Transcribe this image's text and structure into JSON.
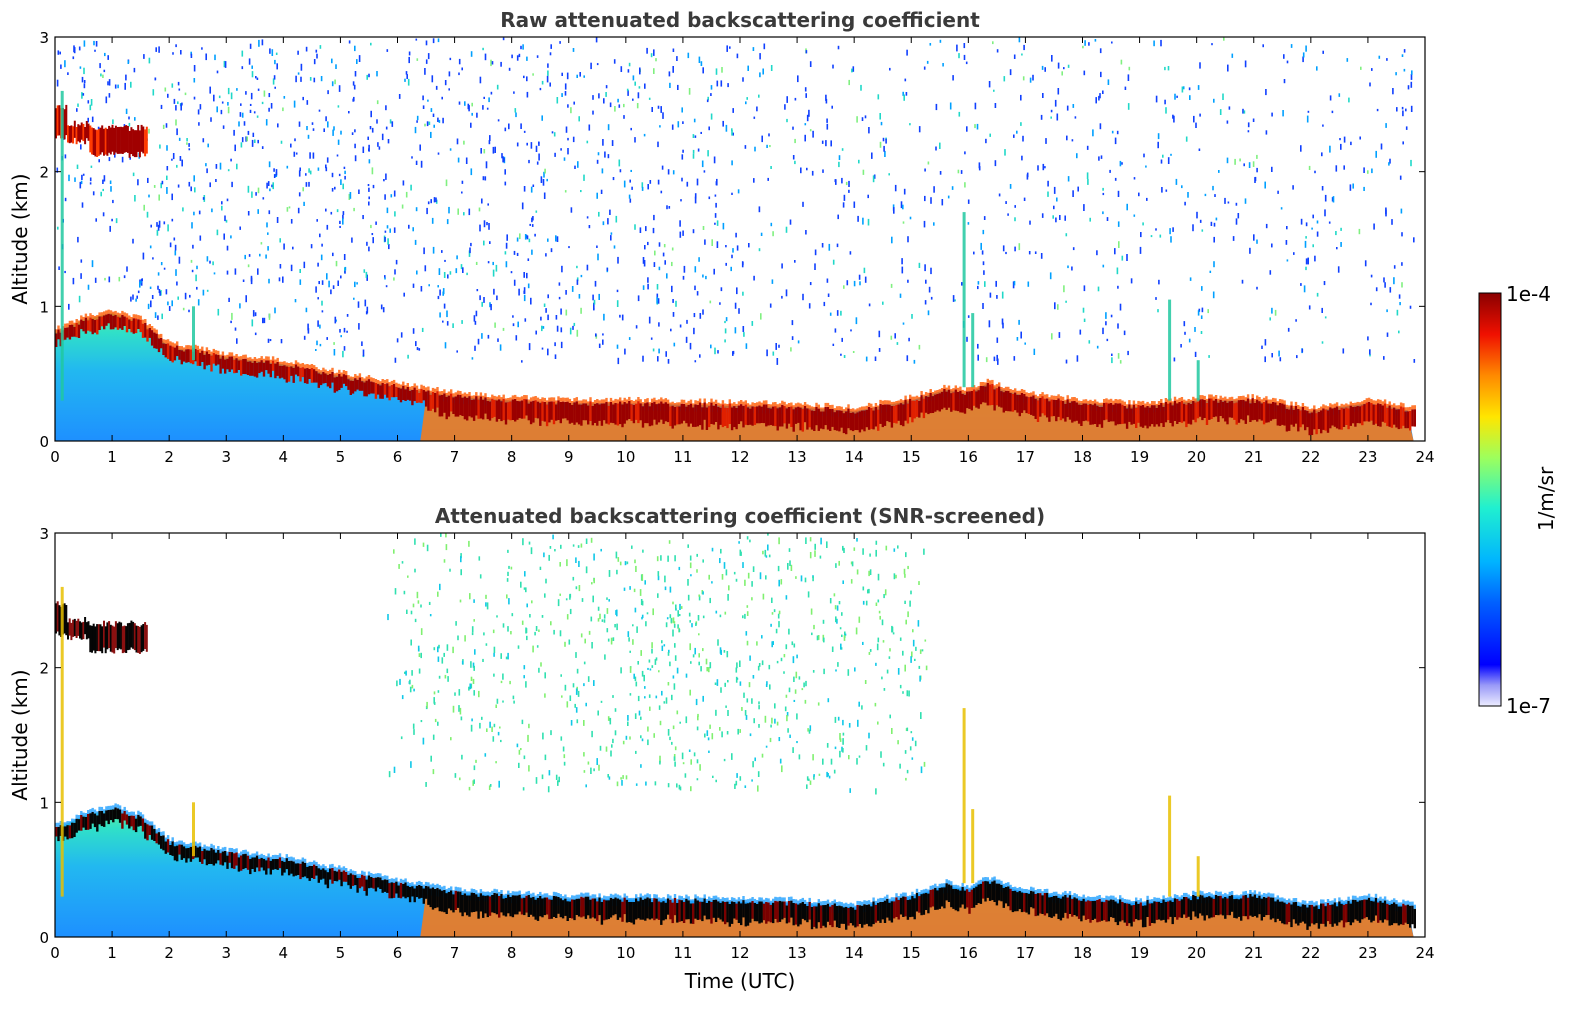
{
  "chart_data": [
    {
      "type": "heatmap",
      "title": "Raw attenuated backscattering coefficient",
      "xlabel": "",
      "ylabel": "Altitude (km)",
      "xlim": [
        0,
        24
      ],
      "ylim": [
        0,
        3
      ],
      "xticks": [
        "0",
        "1",
        "2",
        "3",
        "4",
        "5",
        "6",
        "7",
        "8",
        "9",
        "10",
        "11",
        "12",
        "13",
        "14",
        "15",
        "16",
        "17",
        "18",
        "19",
        "20",
        "21",
        "22",
        "23",
        "24"
      ],
      "yticks": [
        "0",
        "1",
        "2",
        "3"
      ],
      "boundary_layer_top_km": [
        [
          0,
          0.8
        ],
        [
          0.5,
          0.9
        ],
        [
          1.0,
          0.95
        ],
        [
          1.5,
          0.88
        ],
        [
          2.0,
          0.7
        ],
        [
          3.0,
          0.62
        ],
        [
          4.0,
          0.57
        ],
        [
          5.0,
          0.48
        ],
        [
          6.0,
          0.4
        ],
        [
          7.0,
          0.33
        ],
        [
          8.0,
          0.3
        ],
        [
          9.0,
          0.28
        ],
        [
          10.0,
          0.28
        ],
        [
          11.0,
          0.27
        ],
        [
          12.0,
          0.26
        ],
        [
          13.0,
          0.25
        ],
        [
          14.0,
          0.22
        ],
        [
          15.0,
          0.3
        ],
        [
          15.6,
          0.38
        ],
        [
          16.0,
          0.35
        ],
        [
          16.3,
          0.42
        ],
        [
          17.0,
          0.33
        ],
        [
          18.0,
          0.28
        ],
        [
          19.0,
          0.25
        ],
        [
          20.0,
          0.3
        ],
        [
          21.0,
          0.3
        ],
        [
          22.0,
          0.22
        ],
        [
          23.0,
          0.28
        ],
        [
          23.8,
          0.22
        ]
      ],
      "high_cloud": {
        "x_range": [
          0.0,
          1.6
        ],
        "altitude_km": [
          2.1,
          2.5
        ]
      },
      "colorbar": {
        "min": "1e-7",
        "max": "1e-4",
        "label": "1/m/sr",
        "scale": "log"
      }
    },
    {
      "type": "heatmap",
      "title": "Attenuated backscattering coefficient (SNR-screened)",
      "xlabel": "Time (UTC)",
      "ylabel": "Altitude (km)",
      "xlim": [
        0,
        24
      ],
      "ylim": [
        0,
        3
      ],
      "xticks": [
        "0",
        "1",
        "2",
        "3",
        "4",
        "5",
        "6",
        "7",
        "8",
        "9",
        "10",
        "11",
        "12",
        "13",
        "14",
        "15",
        "16",
        "17",
        "18",
        "19",
        "20",
        "21",
        "22",
        "23",
        "24"
      ],
      "yticks": [
        "0",
        "1",
        "2",
        "3"
      ],
      "colorbar": {
        "min": "1e-7",
        "max": "1e-4",
        "label": "1/m/sr",
        "scale": "log"
      }
    }
  ]
}
